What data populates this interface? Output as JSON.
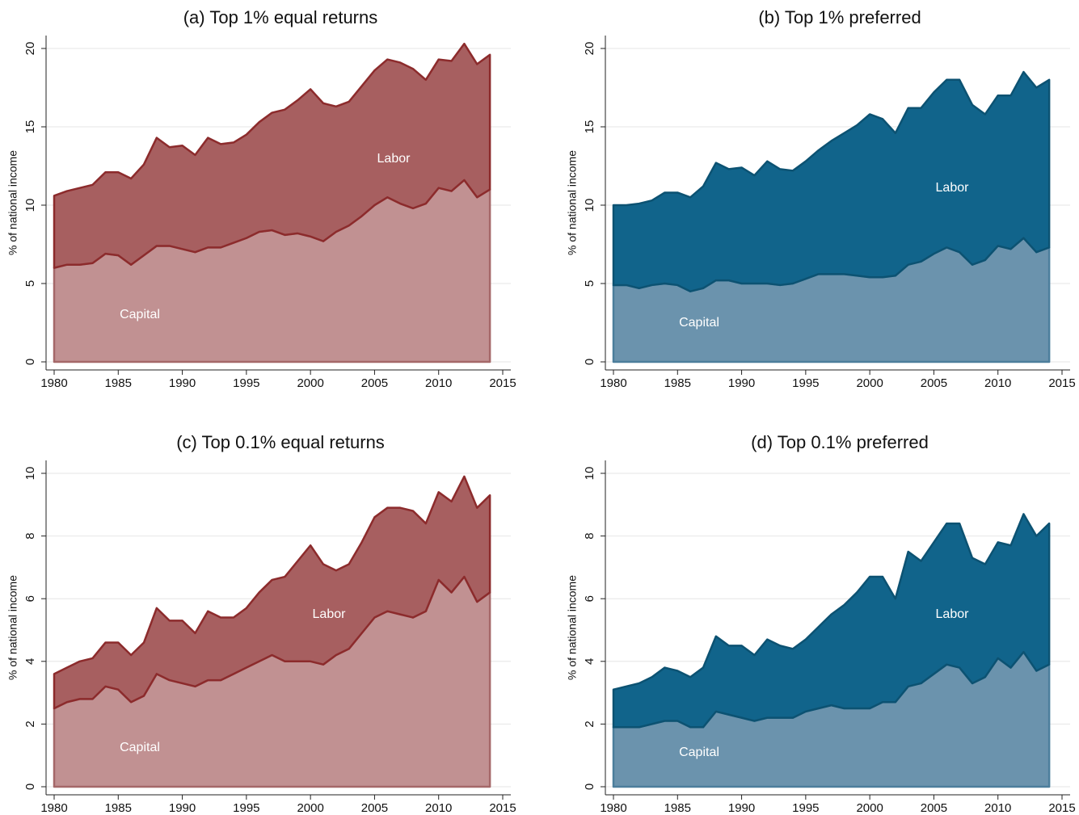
{
  "chart_data": [
    {
      "type": "area",
      "stacked": true,
      "title": "(a) Top 1% equal returns",
      "ylabel": "% of national income",
      "x": [
        1980,
        1981,
        1982,
        1983,
        1984,
        1985,
        1986,
        1987,
        1988,
        1989,
        1990,
        1991,
        1992,
        1993,
        1994,
        1995,
        1996,
        1997,
        1998,
        1999,
        2000,
        2001,
        2002,
        2003,
        2004,
        2005,
        2006,
        2007,
        2008,
        2009,
        2010,
        2011,
        2012,
        2013,
        2014
      ],
      "series": [
        {
          "name": "Capital",
          "color": "#c19192",
          "edgecolor": "#a56869",
          "values": [
            6.0,
            6.2,
            6.2,
            6.3,
            6.9,
            6.8,
            6.2,
            6.8,
            7.4,
            7.4,
            7.2,
            7.0,
            7.3,
            7.3,
            7.6,
            7.9,
            8.3,
            8.4,
            8.1,
            8.2,
            8.0,
            7.7,
            8.3,
            8.7,
            9.3,
            10.0,
            10.5,
            10.1,
            9.8,
            10.1,
            11.1,
            10.9,
            11.6,
            10.5,
            11.0
          ]
        },
        {
          "name": "Labor",
          "color": "#a75f60",
          "edgecolor": "#8c2b2c",
          "values": [
            4.6,
            4.7,
            4.9,
            5.0,
            5.2,
            5.3,
            5.5,
            5.8,
            6.9,
            6.3,
            6.6,
            6.2,
            7.0,
            6.6,
            6.4,
            6.6,
            7.0,
            7.5,
            8.0,
            8.5,
            9.4,
            8.8,
            8.0,
            7.9,
            8.3,
            8.6,
            8.8,
            9.0,
            8.9,
            7.9,
            8.2,
            8.3,
            8.7,
            8.5,
            8.6
          ]
        }
      ],
      "xlim": [
        1980,
        2015
      ],
      "xticks": [
        1980,
        1985,
        1990,
        1995,
        2000,
        2005,
        2010,
        2015
      ],
      "ylim": [
        0,
        20
      ],
      "yticks": [
        0,
        5,
        10,
        15,
        20
      ],
      "grid": true
    },
    {
      "type": "area",
      "stacked": true,
      "title": "(b) Top 1% preferred",
      "ylabel": "% of national income",
      "x": [
        1980,
        1981,
        1982,
        1983,
        1984,
        1985,
        1986,
        1987,
        1988,
        1989,
        1990,
        1991,
        1992,
        1993,
        1994,
        1995,
        1996,
        1997,
        1998,
        1999,
        2000,
        2001,
        2002,
        2003,
        2004,
        2005,
        2006,
        2007,
        2008,
        2009,
        2010,
        2011,
        2012,
        2013,
        2014
      ],
      "series": [
        {
          "name": "Capital",
          "color": "#6b93ad",
          "edgecolor": "#4c7e9c",
          "values": [
            4.9,
            4.9,
            4.7,
            4.9,
            5.0,
            4.9,
            4.5,
            4.7,
            5.2,
            5.2,
            5.0,
            5.0,
            5.0,
            4.9,
            5.0,
            5.3,
            5.6,
            5.6,
            5.6,
            5.5,
            5.4,
            5.4,
            5.5,
            6.2,
            6.4,
            6.9,
            7.3,
            7.0,
            6.2,
            6.5,
            7.4,
            7.2,
            7.9,
            7.0,
            7.3
          ]
        },
        {
          "name": "Labor",
          "color": "#11648b",
          "edgecolor": "#0c5272",
          "values": [
            5.1,
            5.1,
            5.4,
            5.4,
            5.8,
            5.9,
            6.0,
            6.5,
            7.5,
            7.1,
            7.4,
            6.9,
            7.8,
            7.4,
            7.2,
            7.5,
            7.9,
            8.5,
            9.0,
            9.6,
            10.4,
            10.1,
            9.1,
            10.0,
            9.8,
            10.3,
            10.7,
            11.0,
            10.2,
            9.3,
            9.6,
            9.8,
            10.6,
            10.5,
            10.7
          ]
        }
      ],
      "xlim": [
        1980,
        2015
      ],
      "xticks": [
        1980,
        1985,
        1990,
        1995,
        2000,
        2005,
        2010,
        2015
      ],
      "ylim": [
        0,
        20
      ],
      "yticks": [
        0,
        5,
        10,
        15,
        20
      ],
      "grid": true
    },
    {
      "type": "area",
      "stacked": true,
      "title": "(c) Top 0.1% equal returns",
      "ylabel": "% of national income",
      "x": [
        1980,
        1981,
        1982,
        1983,
        1984,
        1985,
        1986,
        1987,
        1988,
        1989,
        1990,
        1991,
        1992,
        1993,
        1994,
        1995,
        1996,
        1997,
        1998,
        1999,
        2000,
        2001,
        2002,
        2003,
        2004,
        2005,
        2006,
        2007,
        2008,
        2009,
        2010,
        2011,
        2012,
        2013,
        2014
      ],
      "series": [
        {
          "name": "Capital",
          "color": "#c19192",
          "edgecolor": "#a56869",
          "values": [
            2.5,
            2.7,
            2.8,
            2.8,
            3.2,
            3.1,
            2.7,
            2.9,
            3.6,
            3.4,
            3.3,
            3.2,
            3.4,
            3.4,
            3.6,
            3.8,
            4.0,
            4.2,
            4.0,
            4.0,
            4.0,
            3.9,
            4.2,
            4.4,
            4.9,
            5.4,
            5.6,
            5.5,
            5.4,
            5.6,
            6.6,
            6.2,
            6.7,
            5.9,
            6.2
          ]
        },
        {
          "name": "Labor",
          "color": "#a75f60",
          "edgecolor": "#8c2b2c",
          "values": [
            1.1,
            1.1,
            1.2,
            1.3,
            1.4,
            1.5,
            1.5,
            1.7,
            2.1,
            1.9,
            2.0,
            1.7,
            2.2,
            2.0,
            1.8,
            1.9,
            2.2,
            2.4,
            2.7,
            3.2,
            3.7,
            3.2,
            2.7,
            2.7,
            2.9,
            3.2,
            3.3,
            3.4,
            3.4,
            2.8,
            2.8,
            2.9,
            3.2,
            3.0,
            3.1
          ]
        }
      ],
      "xlim": [
        1980,
        2015
      ],
      "xticks": [
        1980,
        1985,
        1990,
        1995,
        2000,
        2005,
        2010,
        2015
      ],
      "ylim": [
        0,
        10
      ],
      "yticks": [
        0,
        2,
        4,
        6,
        8,
        10
      ],
      "grid": true
    },
    {
      "type": "area",
      "stacked": true,
      "title": "(d) Top 0.1% preferred",
      "ylabel": "% of national income",
      "x": [
        1980,
        1981,
        1982,
        1983,
        1984,
        1985,
        1986,
        1987,
        1988,
        1989,
        1990,
        1991,
        1992,
        1993,
        1994,
        1995,
        1996,
        1997,
        1998,
        1999,
        2000,
        2001,
        2002,
        2003,
        2004,
        2005,
        2006,
        2007,
        2008,
        2009,
        2010,
        2011,
        2012,
        2013,
        2014
      ],
      "series": [
        {
          "name": "Capital",
          "color": "#6b93ad",
          "edgecolor": "#4c7e9c",
          "values": [
            1.9,
            1.9,
            1.9,
            2.0,
            2.1,
            2.1,
            1.9,
            1.9,
            2.4,
            2.3,
            2.2,
            2.1,
            2.2,
            2.2,
            2.2,
            2.4,
            2.5,
            2.6,
            2.5,
            2.5,
            2.5,
            2.7,
            2.7,
            3.2,
            3.3,
            3.6,
            3.9,
            3.8,
            3.3,
            3.5,
            4.1,
            3.8,
            4.3,
            3.7,
            3.9
          ]
        },
        {
          "name": "Labor",
          "color": "#11648b",
          "edgecolor": "#0c5272",
          "values": [
            1.2,
            1.3,
            1.4,
            1.5,
            1.7,
            1.6,
            1.6,
            1.9,
            2.4,
            2.2,
            2.3,
            2.1,
            2.5,
            2.3,
            2.2,
            2.3,
            2.6,
            2.9,
            3.3,
            3.7,
            4.2,
            4.0,
            3.3,
            4.3,
            3.9,
            4.2,
            4.5,
            4.6,
            4.0,
            3.6,
            3.7,
            3.9,
            4.4,
            4.3,
            4.5
          ]
        }
      ],
      "xlim": [
        1980,
        2015
      ],
      "xticks": [
        1980,
        1985,
        1990,
        1995,
        2000,
        2005,
        2010,
        2015
      ],
      "ylim": [
        0,
        10
      ],
      "yticks": [
        0,
        2,
        4,
        6,
        8,
        10
      ],
      "grid": true
    }
  ]
}
